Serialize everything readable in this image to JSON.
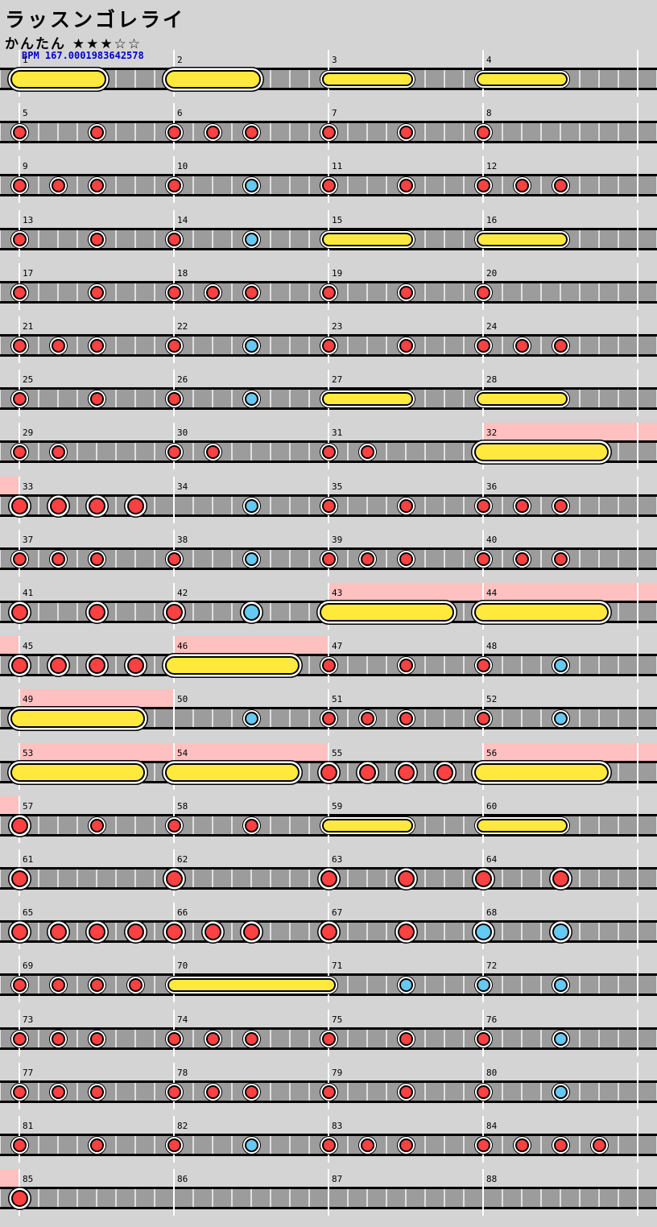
{
  "header": {
    "title": "ラッスンゴレライ",
    "difficulty": "かんたん ★★★☆☆",
    "bpm_label": "BPM 167.0001983642578"
  },
  "colors": {
    "background": "#d4d4d4",
    "lane": "#9c9c9c",
    "lane_border": "#000000",
    "beat_line": "#e0e0e0",
    "measure_line": "#ffffff",
    "don": "#fb4141",
    "ka": "#65c9f1",
    "roll": "#ffe93c",
    "gogo": "#ffc0c0",
    "bpm_text": "#0000cc",
    "text": "#000000"
  },
  "chart": {
    "total_measures": 88,
    "measures_per_row": 4,
    "rows": 22,
    "eighths_per_measure": 8,
    "gogo_measures": [
      32,
      43,
      44,
      46,
      49,
      53,
      54,
      56
    ],
    "extra_gogo_leadin_rows": [
      22
    ],
    "hits": [
      [
        5,
        0,
        "d",
        0
      ],
      [
        5,
        4,
        "d",
        0
      ],
      [
        6,
        0,
        "d",
        0
      ],
      [
        6,
        2,
        "d",
        0
      ],
      [
        6,
        4,
        "d",
        0
      ],
      [
        7,
        0,
        "d",
        0
      ],
      [
        7,
        4,
        "d",
        0
      ],
      [
        8,
        0,
        "d",
        0
      ],
      [
        9,
        0,
        "d",
        0
      ],
      [
        9,
        2,
        "d",
        0
      ],
      [
        9,
        4,
        "d",
        0
      ],
      [
        10,
        0,
        "d",
        0
      ],
      [
        10,
        4,
        "k",
        0
      ],
      [
        11,
        0,
        "d",
        0
      ],
      [
        11,
        4,
        "d",
        0
      ],
      [
        12,
        0,
        "d",
        0
      ],
      [
        12,
        2,
        "d",
        0
      ],
      [
        12,
        4,
        "d",
        0
      ],
      [
        13,
        0,
        "d",
        0
      ],
      [
        13,
        4,
        "d",
        0
      ],
      [
        14,
        0,
        "d",
        0
      ],
      [
        14,
        4,
        "k",
        0
      ],
      [
        17,
        0,
        "d",
        0
      ],
      [
        17,
        4,
        "d",
        0
      ],
      [
        18,
        0,
        "d",
        0
      ],
      [
        18,
        2,
        "d",
        0
      ],
      [
        18,
        4,
        "d",
        0
      ],
      [
        19,
        0,
        "d",
        0
      ],
      [
        19,
        4,
        "d",
        0
      ],
      [
        20,
        0,
        "d",
        0
      ],
      [
        21,
        0,
        "d",
        0
      ],
      [
        21,
        2,
        "d",
        0
      ],
      [
        21,
        4,
        "d",
        0
      ],
      [
        22,
        0,
        "d",
        0
      ],
      [
        22,
        4,
        "k",
        0
      ],
      [
        23,
        0,
        "d",
        0
      ],
      [
        23,
        4,
        "d",
        0
      ],
      [
        24,
        0,
        "d",
        0
      ],
      [
        24,
        2,
        "d",
        0
      ],
      [
        24,
        4,
        "d",
        0
      ],
      [
        25,
        0,
        "d",
        0
      ],
      [
        25,
        4,
        "d",
        0
      ],
      [
        26,
        0,
        "d",
        0
      ],
      [
        26,
        4,
        "k",
        0
      ],
      [
        29,
        0,
        "d",
        0
      ],
      [
        29,
        2,
        "d",
        0
      ],
      [
        30,
        0,
        "d",
        0
      ],
      [
        30,
        2,
        "d",
        0
      ],
      [
        31,
        0,
        "d",
        0
      ],
      [
        31,
        2,
        "d",
        0
      ],
      [
        33,
        0,
        "d",
        1
      ],
      [
        33,
        2,
        "d",
        1
      ],
      [
        33,
        4,
        "d",
        1
      ],
      [
        33,
        6,
        "d",
        1
      ],
      [
        34,
        4,
        "k",
        0
      ],
      [
        35,
        0,
        "d",
        0
      ],
      [
        35,
        4,
        "d",
        0
      ],
      [
        36,
        0,
        "d",
        0
      ],
      [
        36,
        2,
        "d",
        0
      ],
      [
        36,
        4,
        "d",
        0
      ],
      [
        37,
        0,
        "d",
        0
      ],
      [
        37,
        2,
        "d",
        0
      ],
      [
        37,
        4,
        "d",
        0
      ],
      [
        38,
        0,
        "d",
        0
      ],
      [
        38,
        4,
        "k",
        0
      ],
      [
        39,
        0,
        "d",
        0
      ],
      [
        39,
        2,
        "d",
        0
      ],
      [
        39,
        4,
        "d",
        0
      ],
      [
        40,
        0,
        "d",
        0
      ],
      [
        40,
        2,
        "d",
        0
      ],
      [
        40,
        4,
        "d",
        0
      ],
      [
        41,
        0,
        "d",
        1
      ],
      [
        41,
        4,
        "d",
        1
      ],
      [
        42,
        0,
        "d",
        1
      ],
      [
        42,
        4,
        "k",
        1
      ],
      [
        45,
        0,
        "d",
        1
      ],
      [
        45,
        2,
        "d",
        1
      ],
      [
        45,
        4,
        "d",
        1
      ],
      [
        45,
        6,
        "d",
        1
      ],
      [
        47,
        0,
        "d",
        0
      ],
      [
        47,
        4,
        "d",
        0
      ],
      [
        48,
        0,
        "d",
        0
      ],
      [
        48,
        4,
        "k",
        0
      ],
      [
        50,
        4,
        "k",
        0
      ],
      [
        51,
        0,
        "d",
        0
      ],
      [
        51,
        2,
        "d",
        0
      ],
      [
        51,
        4,
        "d",
        0
      ],
      [
        52,
        0,
        "d",
        0
      ],
      [
        52,
        4,
        "k",
        0
      ],
      [
        55,
        0,
        "d",
        1
      ],
      [
        55,
        2,
        "d",
        1
      ],
      [
        55,
        4,
        "d",
        1
      ],
      [
        55,
        6,
        "d",
        1
      ],
      [
        57,
        0,
        "d",
        1
      ],
      [
        57,
        4,
        "d",
        0
      ],
      [
        58,
        0,
        "d",
        0
      ],
      [
        58,
        4,
        "d",
        0
      ],
      [
        61,
        0,
        "d",
        1
      ],
      [
        62,
        0,
        "d",
        1
      ],
      [
        63,
        0,
        "d",
        1
      ],
      [
        63,
        4,
        "d",
        1
      ],
      [
        64,
        0,
        "d",
        1
      ],
      [
        64,
        4,
        "d",
        1
      ],
      [
        65,
        0,
        "d",
        1
      ],
      [
        65,
        2,
        "d",
        1
      ],
      [
        65,
        4,
        "d",
        1
      ],
      [
        65,
        6,
        "d",
        1
      ],
      [
        66,
        0,
        "d",
        1
      ],
      [
        66,
        2,
        "d",
        1
      ],
      [
        66,
        4,
        "d",
        1
      ],
      [
        67,
        0,
        "d",
        1
      ],
      [
        67,
        4,
        "d",
        1
      ],
      [
        68,
        0,
        "k",
        1
      ],
      [
        68,
        4,
        "k",
        1
      ],
      [
        69,
        0,
        "d",
        0
      ],
      [
        69,
        2,
        "d",
        0
      ],
      [
        69,
        4,
        "d",
        0
      ],
      [
        69,
        6,
        "d",
        0
      ],
      [
        71,
        4,
        "k",
        0
      ],
      [
        72,
        0,
        "k",
        0
      ],
      [
        72,
        4,
        "k",
        0
      ],
      [
        73,
        0,
        "d",
        0
      ],
      [
        73,
        2,
        "d",
        0
      ],
      [
        73,
        4,
        "d",
        0
      ],
      [
        74,
        0,
        "d",
        0
      ],
      [
        74,
        2,
        "d",
        0
      ],
      [
        74,
        4,
        "d",
        0
      ],
      [
        75,
        0,
        "d",
        0
      ],
      [
        75,
        4,
        "d",
        0
      ],
      [
        76,
        0,
        "d",
        0
      ],
      [
        76,
        4,
        "k",
        0
      ],
      [
        77,
        0,
        "d",
        0
      ],
      [
        77,
        2,
        "d",
        0
      ],
      [
        77,
        4,
        "d",
        0
      ],
      [
        78,
        0,
        "d",
        0
      ],
      [
        78,
        2,
        "d",
        0
      ],
      [
        78,
        4,
        "d",
        0
      ],
      [
        79,
        0,
        "d",
        0
      ],
      [
        79,
        4,
        "d",
        0
      ],
      [
        80,
        0,
        "d",
        0
      ],
      [
        80,
        4,
        "k",
        0
      ],
      [
        81,
        0,
        "d",
        0
      ],
      [
        81,
        4,
        "d",
        0
      ],
      [
        82,
        0,
        "d",
        0
      ],
      [
        82,
        4,
        "k",
        0
      ],
      [
        83,
        0,
        "d",
        0
      ],
      [
        83,
        2,
        "d",
        0
      ],
      [
        83,
        4,
        "d",
        0
      ],
      [
        84,
        0,
        "d",
        0
      ],
      [
        84,
        2,
        "d",
        0
      ],
      [
        84,
        4,
        "d",
        0
      ],
      [
        84,
        6,
        "d",
        0
      ],
      [
        85,
        0,
        "d",
        1
      ]
    ],
    "rolls": [
      [
        1,
        0,
        4,
        1
      ],
      [
        2,
        0,
        4,
        1
      ],
      [
        3,
        0,
        4,
        0
      ],
      [
        4,
        0,
        4,
        0
      ],
      [
        15,
        0,
        4,
        0
      ],
      [
        16,
        0,
        4,
        0
      ],
      [
        27,
        0,
        4,
        0
      ],
      [
        28,
        0,
        4,
        0
      ],
      [
        32,
        0,
        6,
        1
      ],
      [
        43,
        0,
        6,
        1
      ],
      [
        44,
        0,
        6,
        1
      ],
      [
        46,
        0,
        6,
        1
      ],
      [
        49,
        0,
        6,
        1
      ],
      [
        53,
        0,
        6,
        1
      ],
      [
        54,
        0,
        6,
        1
      ],
      [
        56,
        0,
        6,
        1
      ],
      [
        59,
        0,
        4,
        0
      ],
      [
        60,
        0,
        4,
        0
      ],
      [
        70,
        0,
        8,
        0
      ]
    ]
  }
}
